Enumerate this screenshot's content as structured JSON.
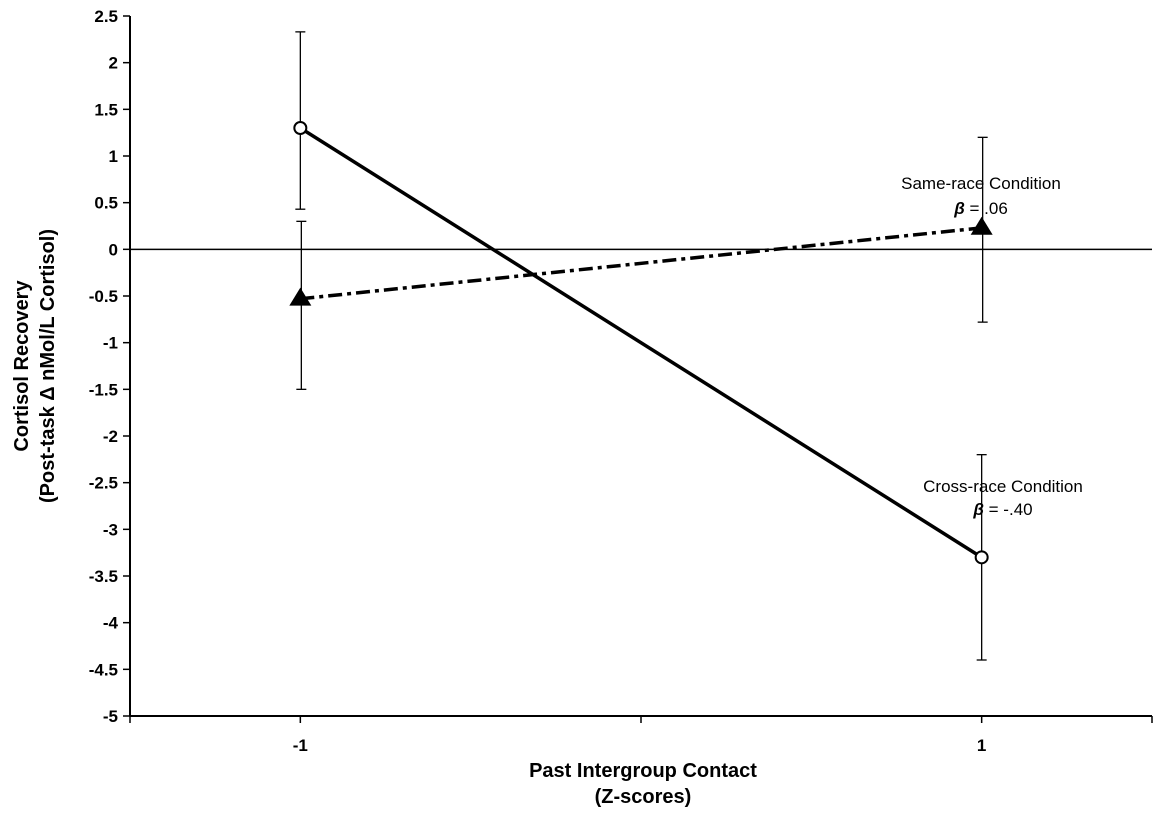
{
  "chart_data": {
    "type": "line",
    "title": "",
    "xlabel": [
      "Past Intergroup Contact",
      "(Z-scores)"
    ],
    "ylabel": [
      "Cortisol Recovery",
      "(Post-task Δ nMol/L Cortisol)"
    ],
    "x_ticks": [
      "-1",
      "1"
    ],
    "y_ticks": [
      "2.5",
      "2",
      "1.5",
      "1",
      "0.5",
      "0",
      "-0.5",
      "-1",
      "-1.5",
      "-2",
      "-2.5",
      "-3",
      "-3.5",
      "-4",
      "-4.5",
      "-5"
    ],
    "x": [
      -1,
      1
    ],
    "xlim": [
      -1.5,
      1.5
    ],
    "ylim": [
      -5,
      2.5
    ],
    "zero_line": true,
    "grid": false,
    "series": [
      {
        "id": "cross",
        "values": [
          1.3,
          -3.3
        ],
        "error_upper": [
          2.33,
          -2.2
        ],
        "error_lower": [
          0.43,
          -4.4
        ],
        "marker": "open-circle",
        "line_style": "solid",
        "annotation": {
          "label": "Cross-race Condition",
          "beta_symbol": "β",
          "beta_text": " = -.40"
        }
      },
      {
        "id": "same",
        "values": [
          -0.53,
          0.23
        ],
        "error_upper": [
          0.3,
          1.2
        ],
        "error_lower": [
          -1.5,
          -0.78
        ],
        "marker": "filled-triangle",
        "line_style": "dash-dot",
        "annotation": {
          "label": "Same-race Condition",
          "beta_symbol": "β",
          "beta_text": " = .06"
        }
      }
    ]
  }
}
